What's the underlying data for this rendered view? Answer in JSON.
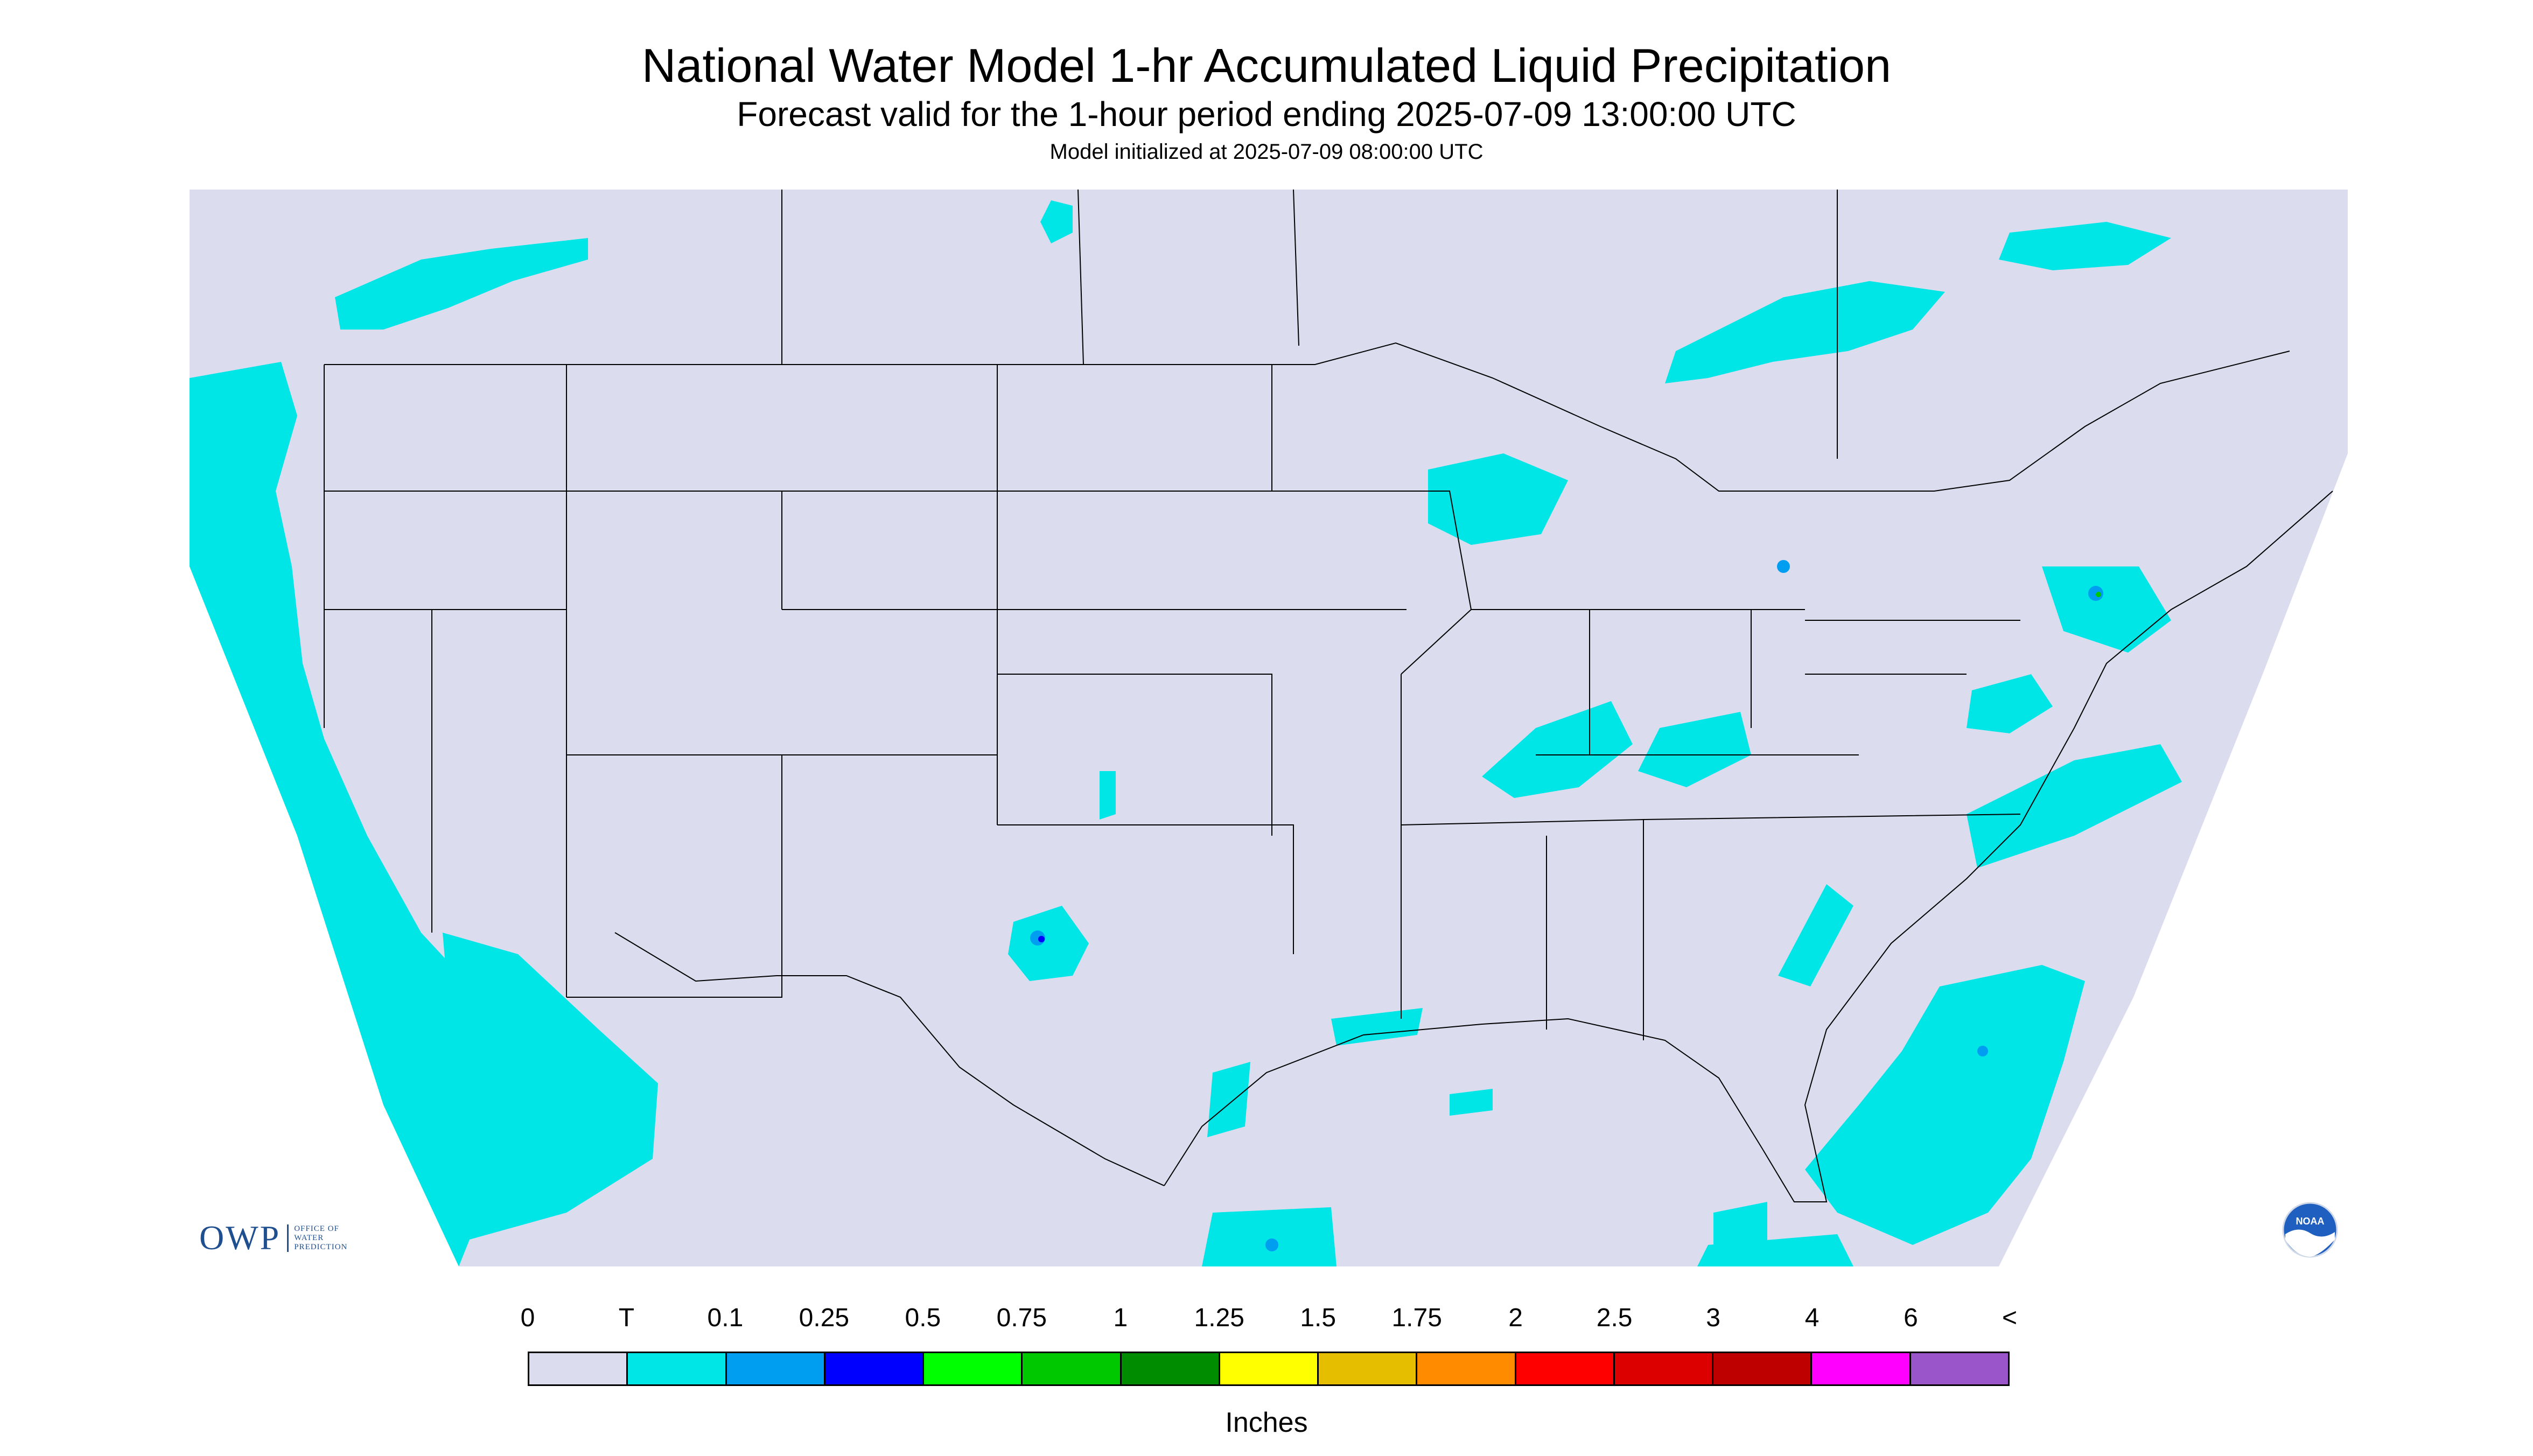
{
  "header": {
    "title": "National Water Model 1-hr Accumulated Liquid Precipitation",
    "subtitle": "Forecast valid for the 1-hour period ending 2025-07-09 13:00:00 UTC",
    "init": "Model initialized at 2025-07-09 08:00:00 UTC"
  },
  "logos": {
    "owp_letters": "OWP",
    "owp_line1": "OFFICE OF",
    "owp_line2": "WATER",
    "owp_line3": "PREDICTION",
    "noaa": "NOAA"
  },
  "legend": {
    "labels": [
      "0",
      "T",
      "0.1",
      "0.25",
      "0.5",
      "0.75",
      "1",
      "1.25",
      "1.5",
      "1.75",
      "2",
      "2.5",
      "3",
      "4",
      "6",
      "<"
    ],
    "colors": [
      "#dcdcef",
      "#00e6e6",
      "#009ef0",
      "#0000ff",
      "#00ff00",
      "#00c800",
      "#008c00",
      "#ffff00",
      "#e6be00",
      "#ff8c00",
      "#ff0000",
      "#dc0000",
      "#be0000",
      "#ff00ff",
      "#9955c9"
    ],
    "units": "Inches"
  },
  "map": {
    "background_color": "#dcdcef",
    "precip_color": "#00e6e6",
    "boundary_color": "#000000"
  }
}
